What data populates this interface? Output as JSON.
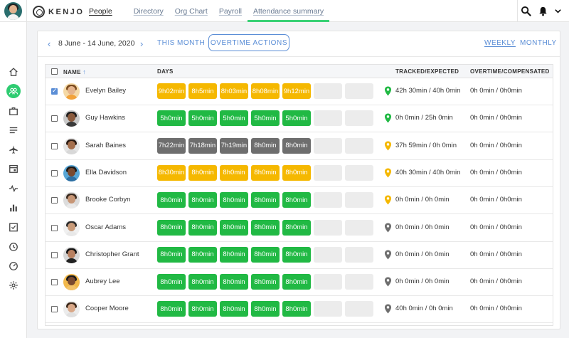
{
  "nav": {
    "logo": "KENJO",
    "items": [
      {
        "label": "People",
        "state": "active"
      },
      {
        "label": "Directory",
        "state": "normal"
      },
      {
        "label": "Org Chart",
        "state": "normal"
      },
      {
        "label": "Payroll",
        "state": "normal"
      },
      {
        "label": "Attendance summary",
        "state": "highlight"
      }
    ]
  },
  "sidebar_icons": [
    "home-icon",
    "people-icon",
    "briefcase-icon",
    "list-icon",
    "plane-icon",
    "calendar-icon",
    "pulse-icon",
    "bar-chart-icon",
    "checklist-icon",
    "clock-icon",
    "dashboard-icon",
    "settings-icon"
  ],
  "toolbar": {
    "prev": "‹",
    "next": "›",
    "date_range": "8 June - 14 June, 2020",
    "this_month": "THIS MONTH",
    "overtime_actions": "OVERTIME ACTIONS",
    "weekly": "WEEKLY",
    "monthly": "MONTHLY"
  },
  "table": {
    "headers": {
      "name": "NAME",
      "sort_icon": "↑",
      "days": "DAYS",
      "tracked": "TRACKED/EXPECTED",
      "overtime": "OVERTIME/COMPENSATED"
    },
    "rows": [
      {
        "name": "Evelyn Bailey",
        "checked": true,
        "days": [
          "9h02min",
          "8h5min",
          "8h03min",
          "8h08min",
          "9h12min",
          "",
          ""
        ],
        "day_colors": [
          "yellow",
          "yellow",
          "yellow",
          "yellow",
          "yellow",
          "empty",
          "empty"
        ],
        "pin_color": "#21b944",
        "tracked": "42h 30min / 40h 0min",
        "overtime": "0h 0min / 0h0min"
      },
      {
        "name": "Guy Hawkins",
        "checked": false,
        "days": [
          "5h0min",
          "5h0min",
          "5h0min",
          "5h0min",
          "5h0min",
          "",
          ""
        ],
        "day_colors": [
          "green",
          "green",
          "green",
          "green",
          "green",
          "empty",
          "empty"
        ],
        "pin_color": "#21b944",
        "tracked": "0h 0min / 25h 0min",
        "overtime": "0h 0min / 0h0min"
      },
      {
        "name": "Sarah Baines",
        "checked": false,
        "days": [
          "7h22min",
          "7h18min",
          "7h19min",
          "8h0min",
          "8h0min",
          "",
          ""
        ],
        "day_colors": [
          "gray",
          "gray",
          "gray",
          "gray",
          "gray",
          "empty",
          "empty"
        ],
        "pin_color": "#f5b800",
        "tracked": "37h 59min / 0h 0min",
        "overtime": "0h 0min / 0h0min"
      },
      {
        "name": "Ella Davidson",
        "checked": false,
        "days": [
          "8h30min",
          "8h0min",
          "8h0min",
          "8h0min",
          "8h0min",
          "",
          ""
        ],
        "day_colors": [
          "yellow",
          "yellow",
          "yellow",
          "yellow",
          "yellow",
          "empty",
          "empty"
        ],
        "pin_color": "#f5b800",
        "tracked": "40h 30min / 40h 0min",
        "overtime": "0h 0min / 0h0min"
      },
      {
        "name": "Brooke Corbyn",
        "checked": false,
        "days": [
          "8h0min",
          "8h0min",
          "8h0min",
          "8h0min",
          "8h0min",
          "",
          ""
        ],
        "day_colors": [
          "green",
          "green",
          "green",
          "green",
          "green",
          "empty",
          "empty"
        ],
        "pin_color": "#f5b800",
        "tracked": "0h 0min / 0h 0min",
        "overtime": "0h 0min / 0h0min"
      },
      {
        "name": "Oscar Adams",
        "checked": false,
        "days": [
          "8h0min",
          "8h0min",
          "8h0min",
          "8h0min",
          "8h0min",
          "",
          ""
        ],
        "day_colors": [
          "green",
          "green",
          "green",
          "green",
          "green",
          "empty",
          "empty"
        ],
        "pin_color": "#6e6e6e",
        "tracked": "0h 0min / 0h 0min",
        "overtime": "0h 0min / 0h0min"
      },
      {
        "name": "Christopher Grant",
        "checked": false,
        "days": [
          "8h0min",
          "8h0min",
          "8h0min",
          "8h0min",
          "8h0min",
          "",
          ""
        ],
        "day_colors": [
          "green",
          "green",
          "green",
          "green",
          "green",
          "empty",
          "empty"
        ],
        "pin_color": "#6e6e6e",
        "tracked": "0h 0min / 0h 0min",
        "overtime": "0h 0min / 0h0min"
      },
      {
        "name": "Aubrey Lee",
        "checked": false,
        "days": [
          "8h0min",
          "8h0min",
          "8h0min",
          "8h0min",
          "8h0min",
          "",
          ""
        ],
        "day_colors": [
          "green",
          "green",
          "green",
          "green",
          "green",
          "empty",
          "empty"
        ],
        "pin_color": "#6e6e6e",
        "tracked": "0h 0min / 0h 0min",
        "overtime": "0h 0min / 0h0min"
      },
      {
        "name": "Cooper Moore",
        "checked": false,
        "days": [
          "8h0min",
          "8h0min",
          "8h0min",
          "8h0min",
          "8h0min",
          "",
          ""
        ],
        "day_colors": [
          "green",
          "green",
          "green",
          "green",
          "green",
          "empty",
          "empty"
        ],
        "pin_color": "#6e6e6e",
        "tracked": "40h 0min / 0h 0min",
        "overtime": "0h 0min / 0h0min"
      }
    ]
  },
  "avatar_palettes": [
    {
      "skin": "#e5b48c",
      "hair": "#7a4a1e",
      "shirt": "#f2a23a",
      "bg": "#f5d9a6"
    },
    {
      "skin": "#8a5a3c",
      "hair": "#1e1e1e",
      "shirt": "#3a3a3a",
      "bg": "#c9c9c9"
    },
    {
      "skin": "#a46e4b",
      "hair": "#2a1a12",
      "shirt": "#d8d8d8",
      "bg": "#e4e4e4"
    },
    {
      "skin": "#7a4a30",
      "hair": "#1a1a1a",
      "shirt": "#2d6fa3",
      "bg": "#57a6d6"
    },
    {
      "skin": "#c79676",
      "hair": "#3a2a1f",
      "shirt": "#e9e9e9",
      "bg": "#dcdcdc"
    },
    {
      "skin": "#c89a78",
      "hair": "#2a2a2a",
      "shirt": "#e8e8e8",
      "bg": "#f0f0f0"
    },
    {
      "skin": "#b88060",
      "hair": "#111111",
      "shirt": "#222222",
      "bg": "#d6d6d6"
    },
    {
      "skin": "#7b4a2f",
      "hair": "#1a1a1a",
      "shirt": "#f4c36a",
      "bg": "#f2b84b"
    },
    {
      "skin": "#d9a888",
      "hair": "#3a2618",
      "shirt": "#e0e0e0",
      "bg": "#ececec"
    }
  ],
  "colors": {
    "accent": "#5b8ed6",
    "green": "#21b944",
    "yellow": "#f5b800",
    "gray": "#6e6e6e",
    "nav_highlight": "#3ad176"
  }
}
